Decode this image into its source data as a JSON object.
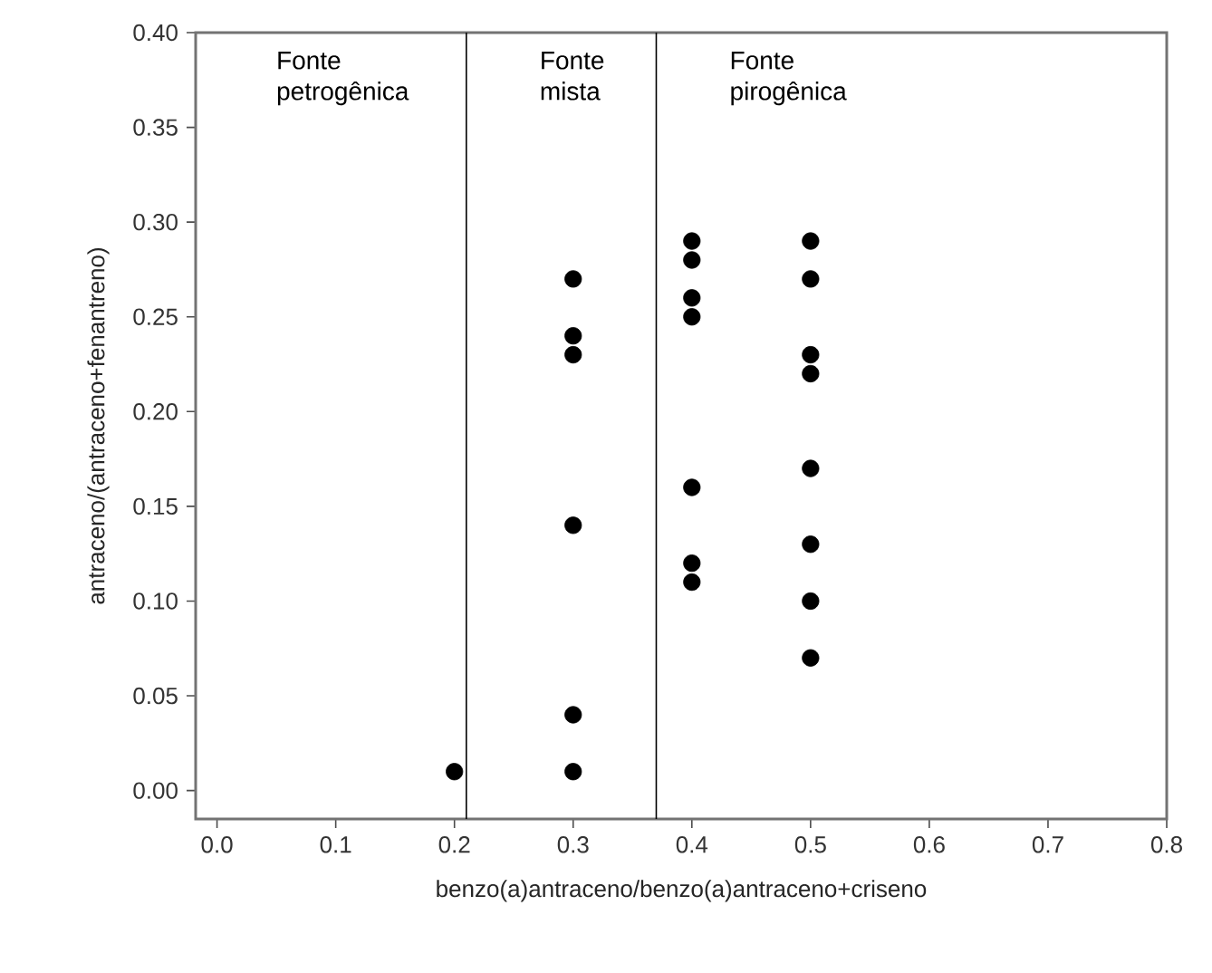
{
  "chart_data": {
    "type": "scatter",
    "xlabel": "benzo(a)antraceno/benzo(a)antraceno+criseno",
    "ylabel": "antraceno/(antraceno+fenantreno)",
    "x": [
      0.2,
      0.3,
      0.3,
      0.3,
      0.3,
      0.3,
      0.3,
      0.4,
      0.4,
      0.4,
      0.4,
      0.4,
      0.4,
      0.4,
      0.5,
      0.5,
      0.5,
      0.5,
      0.5,
      0.5,
      0.5,
      0.5
    ],
    "values": [
      0.01,
      0.27,
      0.24,
      0.23,
      0.14,
      0.04,
      0.01,
      0.29,
      0.28,
      0.26,
      0.25,
      0.16,
      0.12,
      0.11,
      0.29,
      0.27,
      0.23,
      0.22,
      0.17,
      0.13,
      0.1,
      0.07
    ],
    "color": "#000000",
    "marker": "circle",
    "xlim": [
      -0.018,
      0.8
    ],
    "ylim": [
      -0.015,
      0.4
    ],
    "xticks": [
      {
        "value": 0.0,
        "label": "0.0"
      },
      0.1,
      0.2,
      0.3,
      0.4,
      0.5,
      0.6,
      0.7,
      0.8
    ],
    "yticks": [
      {
        "value": 0.0,
        "label": "0.00"
      },
      0.05,
      {
        "value": 0.1,
        "label": "0.10"
      },
      0.15,
      {
        "value": 0.2,
        "label": "0.20"
      },
      0.25,
      {
        "value": 0.3,
        "label": "0.30"
      },
      0.35,
      {
        "value": 0.4,
        "label": "0.40"
      }
    ],
    "ref_lines": [
      {
        "axis": "x",
        "value": 0.21,
        "color": "#000000"
      },
      {
        "axis": "x",
        "value": 0.37,
        "color": "#000000"
      }
    ],
    "annotations": [
      "Fonte petrogênica",
      "Fonte mista",
      "Fonte pirogênica"
    ],
    "grid": false
  }
}
